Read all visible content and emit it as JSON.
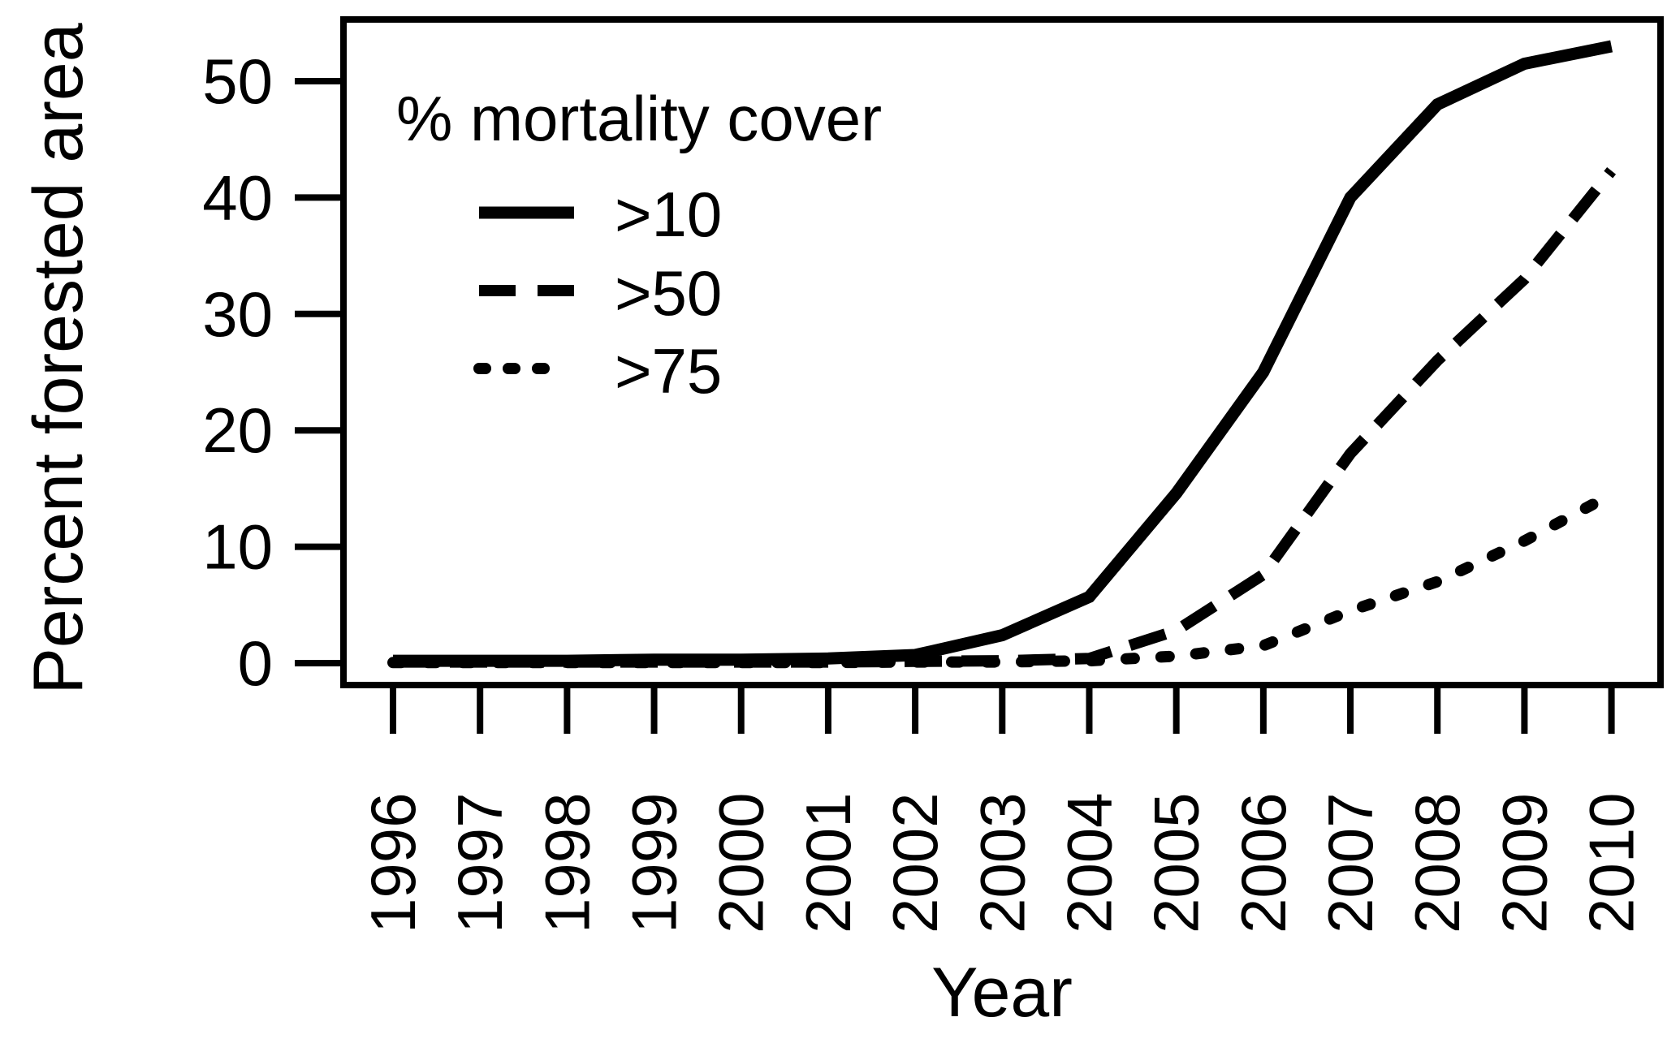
{
  "figure": {
    "background": "#ffffff",
    "ink_color": "#000000",
    "y_axis": {
      "title": "Percent forested area",
      "tick_labels": [
        "0",
        "10",
        "20",
        "30",
        "40",
        "50"
      ]
    },
    "x_axis": {
      "title": "Year",
      "tick_labels": [
        "1996",
        "1997",
        "1998",
        "1999",
        "2000",
        "2001",
        "2002",
        "2003",
        "2004",
        "2005",
        "2006",
        "2007",
        "2008",
        "2009",
        "2010"
      ]
    },
    "legend": {
      "title": "% mortality cover",
      "items": [
        {
          "label": ">10",
          "style": "solid"
        },
        {
          "label": ">50",
          "style": "dashed"
        },
        {
          "label": ">75",
          "style": "dotted"
        }
      ]
    }
  },
  "chart_data": {
    "type": "line",
    "title": "",
    "xlabel": "Year",
    "ylabel": "Percent forested area",
    "x": [
      1996,
      1997,
      1998,
      1999,
      2000,
      2001,
      2002,
      2003,
      2004,
      2005,
      2006,
      2007,
      2008,
      2009,
      2010
    ],
    "xlim": [
      1996,
      2010
    ],
    "ylim": [
      0,
      55
    ],
    "yticks": [
      0,
      10,
      20,
      30,
      40,
      50
    ],
    "grid": false,
    "legend_position": "top-left",
    "series": [
      {
        "name": ">10",
        "style": "solid",
        "values": [
          0.2,
          0.2,
          0.2,
          0.3,
          0.3,
          0.4,
          0.7,
          2.4,
          5.7,
          14.6,
          25,
          40,
          48,
          51.5,
          53
        ]
      },
      {
        "name": ">50",
        "style": "dashed",
        "values": [
          0.1,
          0.1,
          0.1,
          0.1,
          0.1,
          0.1,
          0.15,
          0.2,
          0.4,
          2.8,
          7.6,
          18,
          26,
          33,
          42.3
        ]
      },
      {
        "name": ">75",
        "style": "dotted",
        "values": [
          0.05,
          0.05,
          0.05,
          0.05,
          0.05,
          0.05,
          0.1,
          0.1,
          0.2,
          0.6,
          1.5,
          4.5,
          7,
          10.5,
          14.5
        ]
      }
    ]
  }
}
